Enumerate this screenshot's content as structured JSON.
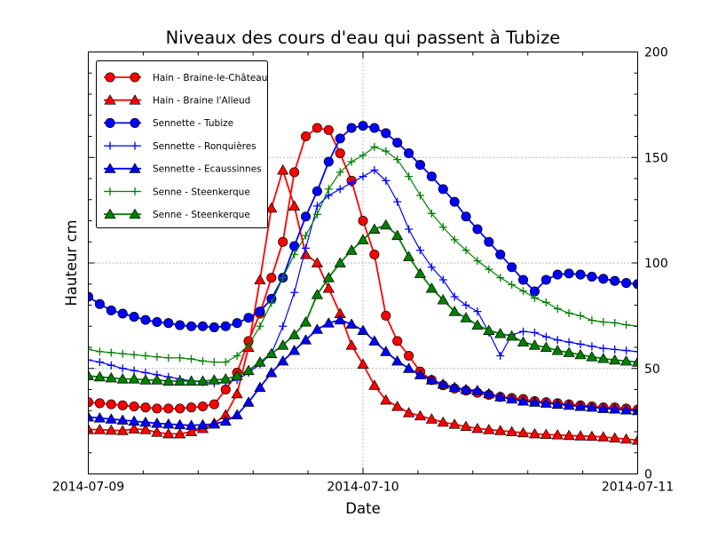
{
  "figure": {
    "background": "#ffffff"
  },
  "chart_data": {
    "type": "line",
    "title": "Niveaux des cours d'eau qui passent à Tubize",
    "xlabel": "Date",
    "ylabel": "Hauteur cm",
    "ylim": [
      0,
      200
    ],
    "yticks": [
      0,
      50,
      100,
      150,
      200
    ],
    "xticklabels": [
      "2014-07-09",
      "2014-07-10",
      "2014-07-11"
    ],
    "x_unit": "hours since 2014-07-09 00:00",
    "x_step_hours": 1,
    "grid": {
      "horizontal_at": [
        50,
        100,
        150
      ],
      "vertical_at_hours": [
        24
      ],
      "style": "dotted"
    },
    "legend_position": "upper left",
    "series": [
      {
        "name": "Hain - Braine-le-Château",
        "color": "#ff0000",
        "marker": "circle",
        "values": [
          34,
          33.5,
          33,
          32.5,
          32,
          31.5,
          31,
          31,
          31,
          31.5,
          32,
          33,
          40,
          48,
          63,
          76,
          93,
          110,
          143,
          160,
          164,
          163,
          152,
          139,
          120,
          104,
          75,
          63,
          56,
          48.5,
          44.5,
          42,
          40.5,
          39.5,
          38.5,
          37.5,
          36.5,
          36,
          35.5,
          34.5,
          34,
          33.5,
          33,
          32.5,
          32,
          31.5,
          31.5,
          31,
          30.5
        ]
      },
      {
        "name": "Hain - Braine l'Alleud",
        "color": "#ff0000",
        "marker": "triangle",
        "values": [
          21,
          21,
          20.7,
          20.5,
          21.3,
          21,
          19.7,
          19,
          19,
          20,
          21.5,
          24,
          28,
          38,
          60,
          92,
          126,
          144,
          127,
          104,
          100,
          88,
          76,
          61,
          52,
          42,
          35,
          32,
          29,
          27.5,
          26,
          24.5,
          23.5,
          22.5,
          21.5,
          21,
          20.5,
          20,
          19.5,
          19,
          18.7,
          18.5,
          18.2,
          18,
          17.8,
          17.5,
          17,
          16.5,
          16
        ]
      },
      {
        "name": "Sennette - Tubize",
        "color": "#0000ff",
        "marker": "circle",
        "values": [
          84,
          80.5,
          77.5,
          76,
          74.5,
          73,
          72,
          71.5,
          70.5,
          70,
          70,
          69.5,
          70,
          71.5,
          74,
          77,
          83,
          93,
          108,
          122,
          134,
          148,
          159,
          164,
          165,
          164,
          161.5,
          157,
          152,
          146.5,
          141,
          135,
          129,
          122,
          116,
          110,
          104,
          98,
          92,
          86.5,
          92,
          94.5,
          95,
          94.5,
          93.5,
          92.5,
          91.5,
          90.5,
          90
        ]
      },
      {
        "name": "Sennette - Ronquières",
        "color": "#0000ff",
        "marker": "plus",
        "values": [
          54,
          53,
          51.5,
          50,
          49,
          48,
          47,
          46,
          45,
          44,
          43.5,
          43,
          43.5,
          44.5,
          48,
          52,
          57,
          70,
          86,
          107,
          127,
          132,
          135,
          138,
          141,
          144,
          139,
          129,
          116,
          106,
          98,
          92,
          84,
          80,
          77,
          67,
          56,
          66,
          67.5,
          67,
          65,
          63.5,
          62.5,
          61.5,
          60.5,
          59.5,
          59,
          58.5,
          58
        ]
      },
      {
        "name": "Sennette - Ecaussinnes",
        "color": "#0000ff",
        "marker": "triangle",
        "values": [
          27,
          26.5,
          26,
          25.5,
          25,
          24.5,
          24,
          23.6,
          23.3,
          23,
          23.3,
          23.6,
          25,
          28,
          34,
          41,
          48,
          53.5,
          58.5,
          63.5,
          68.5,
          71.5,
          73,
          71,
          68,
          63,
          58,
          53.5,
          50,
          47,
          44.5,
          42.5,
          41,
          40,
          39.5,
          38,
          36.5,
          35.5,
          34.5,
          34,
          33.5,
          33,
          32.5,
          32,
          31.6,
          31,
          30.7,
          30.3,
          30
        ]
      },
      {
        "name": "Senne - Steenkerque",
        "color": "#008000",
        "marker": "plus",
        "values": [
          59,
          58,
          57.5,
          57,
          56.5,
          56,
          55.5,
          55,
          55,
          54.5,
          53.5,
          53,
          53,
          56,
          61,
          70,
          81,
          93,
          104,
          113,
          123,
          135,
          143,
          148,
          151,
          155,
          153,
          149,
          141,
          132,
          123.5,
          117,
          111,
          106,
          101,
          97,
          93,
          89.7,
          86.7,
          83.4,
          81.3,
          78.3,
          76.2,
          75,
          72.8,
          72,
          71.6,
          70.7,
          70
        ]
      },
      {
        "name": "Senne - Steenkerque",
        "color": "#008000",
        "marker": "triangle",
        "values": [
          46.5,
          46,
          45.5,
          45,
          45,
          44.5,
          44.5,
          44,
          44,
          44,
          44,
          44.5,
          45,
          46.5,
          49,
          53,
          57,
          61,
          66,
          72,
          85,
          93,
          100,
          106,
          111,
          116,
          118,
          113,
          103,
          95,
          88,
          82.5,
          77,
          74,
          70.5,
          68,
          66.5,
          65.3,
          62.5,
          61,
          60,
          58.5,
          57.5,
          56.5,
          55.5,
          54.7,
          54,
          53.5,
          53
        ]
      }
    ]
  }
}
